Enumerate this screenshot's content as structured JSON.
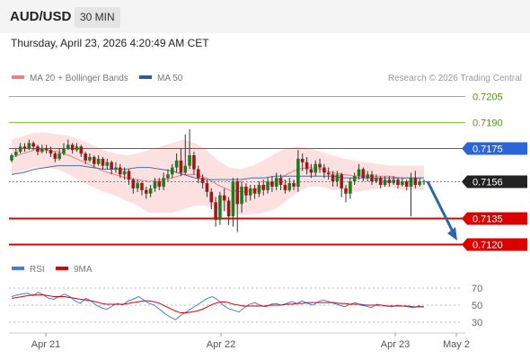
{
  "header": {
    "symbol": "AUD/USD",
    "timeframe": "30 MIN",
    "datetime": "Thursday, April 23, 2026 4:20:49 AM CET"
  },
  "legend": {
    "ma20_bb": "MA 20 + Bollinger Bands",
    "ma50": "MA 50",
    "copyright": "Research © 2026 Trading Central"
  },
  "rsi_legend": {
    "rsi": "RSI",
    "ma9": "9MA"
  },
  "colors": {
    "green_level": "#8dc63f",
    "blue_level": "#2b66d9",
    "red_level": "#dd0000",
    "ma20": "#f08080",
    "bollinger_fill": "#fde0e0",
    "ma50": "#4a6fa5",
    "bull_candle": "#1e7b1e",
    "bear_candle": "#a01818",
    "arrow": "#2b66a8",
    "rsi_line": "#4a7fd9",
    "rsi_ma": "#dd0000"
  },
  "chart_data": [
    {
      "type": "candlestick",
      "title": "AUD/USD 30 MIN",
      "x_ticks": [
        "Apr 21",
        "Apr 22",
        "Apr 23",
        "May 2"
      ],
      "ylim": [
        0.7113,
        0.7215
      ],
      "levels": [
        {
          "value": 0.7205,
          "label": "0.7205",
          "color": "green",
          "kind": "resistance"
        },
        {
          "value": 0.719,
          "label": "0.7190",
          "color": "green",
          "kind": "resistance"
        },
        {
          "value": 0.7175,
          "label": "0.7175",
          "color": "blue",
          "kind": "pivot"
        },
        {
          "value": 0.7156,
          "label": "0.7156",
          "color": "black",
          "kind": "last_price"
        },
        {
          "value": 0.7135,
          "label": "0.7135",
          "color": "red",
          "kind": "support"
        },
        {
          "value": 0.712,
          "label": "0.7120",
          "color": "red",
          "kind": "support"
        }
      ],
      "ma20": [
        0.717,
        0.7172,
        0.7174,
        0.7174,
        0.7173,
        0.7171,
        0.7168,
        0.7165,
        0.7162,
        0.716,
        0.7158,
        0.7157,
        0.7156,
        0.7157,
        0.7158,
        0.716,
        0.716,
        0.7158,
        0.7154,
        0.7151,
        0.715,
        0.7151,
        0.7153,
        0.7156,
        0.716,
        0.7163,
        0.7164,
        0.7163,
        0.7161,
        0.716,
        0.7159,
        0.7159,
        0.7159,
        0.7159,
        0.7158,
        0.7158,
        0.7158
      ],
      "bb_upper": [
        0.718,
        0.7182,
        0.7184,
        0.7184,
        0.7183,
        0.7182,
        0.718,
        0.7177,
        0.7174,
        0.7172,
        0.7171,
        0.7172,
        0.7174,
        0.7176,
        0.7178,
        0.718,
        0.7178,
        0.7174,
        0.7168,
        0.7164,
        0.7163,
        0.7165,
        0.7168,
        0.7172,
        0.7175,
        0.7176,
        0.7175,
        0.7173,
        0.7171,
        0.7169,
        0.7168,
        0.7167,
        0.7166,
        0.7165,
        0.7165,
        0.7165,
        0.7165
      ],
      "bb_lower": [
        0.716,
        0.7162,
        0.7164,
        0.7164,
        0.7163,
        0.716,
        0.7156,
        0.7153,
        0.715,
        0.7148,
        0.7145,
        0.7142,
        0.7138,
        0.7138,
        0.7138,
        0.714,
        0.7142,
        0.7142,
        0.714,
        0.7138,
        0.7137,
        0.7137,
        0.7138,
        0.714,
        0.7145,
        0.715,
        0.7153,
        0.7153,
        0.7151,
        0.7151,
        0.715,
        0.7151,
        0.7152,
        0.7153,
        0.7151,
        0.7151,
        0.7151
      ],
      "ma50": [
        0.716,
        0.7161,
        0.7163,
        0.7164,
        0.7165,
        0.7165,
        0.7165,
        0.7164,
        0.7163,
        0.7163,
        0.7163,
        0.7164,
        0.7164,
        0.7163,
        0.7162,
        0.716,
        0.7158,
        0.7157,
        0.7157,
        0.7157,
        0.7157,
        0.7158,
        0.7158,
        0.7159,
        0.7159,
        0.7159,
        0.7159,
        0.7159,
        0.7159,
        0.7158,
        0.7158,
        0.7158,
        0.7158,
        0.7158,
        0.7158,
        0.7158,
        0.7158
      ],
      "candles": [
        [
          0.7168,
          0.7171,
          0.7172,
          0.7167
        ],
        [
          0.7171,
          0.7173,
          0.7175,
          0.717
        ],
        [
          0.7173,
          0.7176,
          0.7178,
          0.7172
        ],
        [
          0.7176,
          0.7175,
          0.7178,
          0.7173
        ],
        [
          0.7175,
          0.7178,
          0.718,
          0.7174
        ],
        [
          0.7178,
          0.7176,
          0.7179,
          0.7174
        ],
        [
          0.7176,
          0.7173,
          0.7177,
          0.7171
        ],
        [
          0.7173,
          0.7175,
          0.7177,
          0.7172
        ],
        [
          0.7175,
          0.7174,
          0.7177,
          0.7172
        ],
        [
          0.7174,
          0.7172,
          0.7176,
          0.717
        ],
        [
          0.7172,
          0.7169,
          0.7173,
          0.7167
        ],
        [
          0.7169,
          0.7172,
          0.7175,
          0.7168
        ],
        [
          0.7172,
          0.7175,
          0.7178,
          0.7171
        ],
        [
          0.7175,
          0.7177,
          0.718,
          0.7174
        ],
        [
          0.7177,
          0.7174,
          0.7178,
          0.7172
        ],
        [
          0.7174,
          0.7176,
          0.7178,
          0.7173
        ],
        [
          0.7176,
          0.7172,
          0.7177,
          0.717
        ],
        [
          0.7172,
          0.7168,
          0.7173,
          0.7166
        ],
        [
          0.7168,
          0.717,
          0.7172,
          0.7167
        ],
        [
          0.717,
          0.7166,
          0.7171,
          0.7164
        ],
        [
          0.7166,
          0.7169,
          0.7171,
          0.7165
        ],
        [
          0.7169,
          0.7165,
          0.717,
          0.7163
        ],
        [
          0.7165,
          0.7167,
          0.7169,
          0.7163
        ],
        [
          0.7167,
          0.7163,
          0.7168,
          0.716
        ],
        [
          0.7163,
          0.7164,
          0.7167,
          0.7161
        ],
        [
          0.7164,
          0.716,
          0.7166,
          0.7158
        ],
        [
          0.716,
          0.7162,
          0.7164,
          0.7157
        ],
        [
          0.7162,
          0.7157,
          0.7163,
          0.7154
        ],
        [
          0.7157,
          0.7152,
          0.7158,
          0.7149
        ],
        [
          0.7152,
          0.7155,
          0.7157,
          0.715
        ],
        [
          0.7155,
          0.7151,
          0.7156,
          0.7148
        ],
        [
          0.7151,
          0.7149,
          0.7153,
          0.7146
        ],
        [
          0.7149,
          0.7152,
          0.7154,
          0.7147
        ],
        [
          0.7152,
          0.7156,
          0.7158,
          0.715
        ],
        [
          0.7156,
          0.7153,
          0.7158,
          0.7151
        ],
        [
          0.7153,
          0.7158,
          0.7161,
          0.7151
        ],
        [
          0.7158,
          0.716,
          0.7163,
          0.7156
        ],
        [
          0.716,
          0.7164,
          0.7166,
          0.7158
        ],
        [
          0.7164,
          0.7168,
          0.7172,
          0.7161
        ],
        [
          0.7168,
          0.7161,
          0.7175,
          0.7159
        ],
        [
          0.7161,
          0.7165,
          0.7183,
          0.716
        ],
        [
          0.7165,
          0.7171,
          0.7186,
          0.7163
        ],
        [
          0.7171,
          0.7163,
          0.7173,
          0.716
        ],
        [
          0.7163,
          0.7158,
          0.7165,
          0.7155
        ],
        [
          0.7158,
          0.7155,
          0.716,
          0.7152
        ],
        [
          0.7155,
          0.715,
          0.7157,
          0.7147
        ],
        [
          0.715,
          0.7144,
          0.7152,
          0.714
        ],
        [
          0.7144,
          0.7134,
          0.7147,
          0.713
        ],
        [
          0.7134,
          0.7148,
          0.715,
          0.7131
        ],
        [
          0.7148,
          0.7145,
          0.7152,
          0.7139
        ],
        [
          0.7145,
          0.7136,
          0.7147,
          0.7131
        ],
        [
          0.7136,
          0.7156,
          0.7158,
          0.713
        ],
        [
          0.7156,
          0.7143,
          0.7158,
          0.7127
        ],
        [
          0.7143,
          0.7153,
          0.7156,
          0.7138
        ],
        [
          0.7153,
          0.7148,
          0.7155,
          0.7144
        ],
        [
          0.7148,
          0.7152,
          0.7154,
          0.7145
        ],
        [
          0.7152,
          0.7149,
          0.7154,
          0.7146
        ],
        [
          0.7149,
          0.7154,
          0.7156,
          0.7147
        ],
        [
          0.7154,
          0.7151,
          0.7157,
          0.7148
        ],
        [
          0.7151,
          0.7156,
          0.7158,
          0.7149
        ],
        [
          0.7156,
          0.7153,
          0.7159,
          0.715
        ],
        [
          0.7153,
          0.7158,
          0.7161,
          0.7151
        ],
        [
          0.7158,
          0.7154,
          0.716,
          0.7151
        ],
        [
          0.7154,
          0.7151,
          0.7157,
          0.7149
        ],
        [
          0.7151,
          0.7155,
          0.7158,
          0.715
        ],
        [
          0.7155,
          0.7153,
          0.7157,
          0.7151
        ],
        [
          0.7153,
          0.7169,
          0.7174,
          0.715
        ],
        [
          0.7169,
          0.7167,
          0.7172,
          0.7162
        ],
        [
          0.7167,
          0.7163,
          0.717,
          0.716
        ],
        [
          0.7163,
          0.7161,
          0.7166,
          0.7158
        ],
        [
          0.7161,
          0.7166,
          0.7168,
          0.7159
        ],
        [
          0.7166,
          0.7164,
          0.7169,
          0.7161
        ],
        [
          0.7164,
          0.7161,
          0.7166,
          0.7158
        ],
        [
          0.7161,
          0.716,
          0.7164,
          0.7157
        ],
        [
          0.716,
          0.7156,
          0.7162,
          0.7153
        ],
        [
          0.7156,
          0.716,
          0.7162,
          0.7153
        ],
        [
          0.716,
          0.7152,
          0.7161,
          0.7147
        ],
        [
          0.7152,
          0.7149,
          0.7154,
          0.7144
        ],
        [
          0.7149,
          0.7156,
          0.7158,
          0.7146
        ],
        [
          0.7156,
          0.7159,
          0.7161,
          0.7154
        ],
        [
          0.7159,
          0.7163,
          0.7166,
          0.7157
        ],
        [
          0.7163,
          0.7158,
          0.7164,
          0.7156
        ],
        [
          0.7158,
          0.716,
          0.7162,
          0.7156
        ],
        [
          0.716,
          0.7156,
          0.7162,
          0.7154
        ],
        [
          0.7156,
          0.7158,
          0.716,
          0.7155
        ],
        [
          0.7158,
          0.7154,
          0.7159,
          0.7152
        ],
        [
          0.7154,
          0.7157,
          0.7159,
          0.7153
        ],
        [
          0.7157,
          0.7155,
          0.7159,
          0.7153
        ],
        [
          0.7155,
          0.7157,
          0.7159,
          0.7154
        ],
        [
          0.7157,
          0.7154,
          0.7158,
          0.7152
        ],
        [
          0.7154,
          0.7156,
          0.7158,
          0.7153
        ],
        [
          0.7156,
          0.7153,
          0.7157,
          0.7151
        ],
        [
          0.7153,
          0.7158,
          0.7161,
          0.7136
        ],
        [
          0.7158,
          0.7154,
          0.7162,
          0.7152
        ],
        [
          0.7154,
          0.7156,
          0.7158,
          0.7153
        ],
        [
          0.7156,
          0.7156,
          0.7157,
          0.7154
        ]
      ],
      "forecast_arrow": {
        "from": 0.7156,
        "to": 0.712
      }
    },
    {
      "type": "line",
      "title": "RSI",
      "y_ticks": [
        70,
        50,
        30
      ],
      "ylim": [
        20,
        80
      ],
      "series": [
        {
          "name": "RSI",
          "values": [
            60,
            62,
            63,
            64,
            61,
            65,
            62,
            58,
            57,
            60,
            63,
            60,
            55,
            52,
            58,
            55,
            50,
            47,
            45,
            49,
            52,
            50,
            55,
            57,
            60,
            56,
            52,
            50,
            45,
            40,
            36,
            33,
            38,
            42,
            46,
            50,
            54,
            58,
            60,
            56,
            50,
            46,
            44,
            42,
            47,
            51,
            53,
            50,
            48,
            51,
            52,
            50,
            52,
            54,
            52,
            55,
            52,
            50,
            54,
            56,
            54,
            52,
            50,
            48,
            51,
            53,
            50,
            49,
            47,
            51,
            50,
            49,
            48,
            50,
            49,
            48,
            47,
            49,
            48
          ]
        },
        {
          "name": "9MA",
          "values": [
            58,
            59,
            60,
            61,
            62,
            62,
            62,
            61,
            60,
            60,
            60,
            59,
            58,
            57,
            56,
            55,
            54,
            52,
            51,
            51,
            51,
            51,
            52,
            53,
            54,
            55,
            55,
            54,
            52,
            49,
            46,
            43,
            41,
            41,
            42,
            43,
            45,
            48,
            51,
            53,
            54,
            53,
            51,
            50,
            49,
            49,
            49,
            49,
            49,
            50,
            50,
            50,
            51,
            51,
            52,
            52,
            53,
            53,
            53,
            53,
            53,
            53,
            52,
            52,
            51,
            51,
            51,
            50,
            50,
            50,
            50,
            49,
            49,
            49,
            49,
            49,
            48,
            48,
            48
          ]
        }
      ]
    }
  ]
}
